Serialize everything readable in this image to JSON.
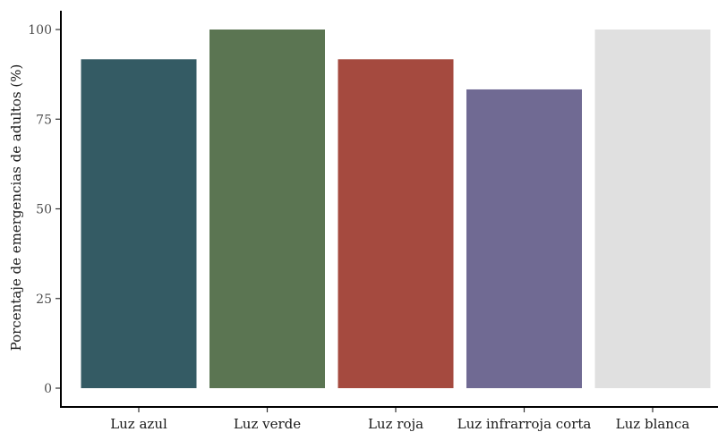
{
  "chart_data": {
    "type": "bar",
    "categories": [
      "Luz azul",
      "Luz verde",
      "Luz roja",
      "Luz infrarroja corta",
      "Luz blanca"
    ],
    "values": [
      91.7,
      100,
      91.7,
      83.3,
      100
    ],
    "colors": [
      "#345b64",
      "#5b7552",
      "#a54a3f",
      "#706a93",
      "#e0e0e0"
    ],
    "ylabel": "Porcentaje de emergencias de adultos (%)",
    "xlabel": "",
    "title": "",
    "ylim": [
      0,
      100
    ],
    "yticks": [
      0,
      25,
      50,
      75,
      100
    ],
    "grid": false,
    "legend": "none"
  }
}
